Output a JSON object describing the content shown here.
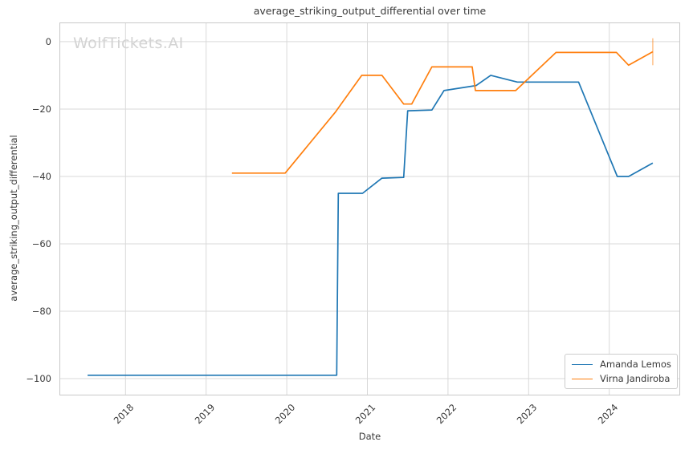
{
  "watermark": "WolfTickets.AI",
  "colors": {
    "grid": "#d9d9d9",
    "spine": "#c8c8c8",
    "watermark": "#d3d3d3",
    "text": "#3a3a3a",
    "series_blue": "#1f77b4",
    "series_orange": "#ff7f0e"
  },
  "chart_data": {
    "type": "line",
    "title": "average_striking_output_differential over time",
    "xlabel": "Date",
    "ylabel": "average_striking_output_differential",
    "grid": true,
    "legend_position": "lower right",
    "xlim": [
      2017.18,
      2024.88
    ],
    "ylim": [
      -105,
      5.7
    ],
    "x_ticks": [
      2018,
      2019,
      2020,
      2021,
      2022,
      2023,
      2024
    ],
    "x_tick_labels": [
      "2018",
      "2019",
      "2020",
      "2021",
      "2022",
      "2023",
      "2024"
    ],
    "y_ticks": [
      0,
      -20,
      -40,
      -60,
      -80,
      -100
    ],
    "y_tick_labels": [
      "0",
      "−20",
      "−40",
      "−60",
      "−80",
      "−100"
    ],
    "series": [
      {
        "name": "Amanda Lemos",
        "color": "#1f77b4",
        "points": [
          [
            2017.53,
            -99
          ],
          [
            2020.62,
            -99
          ],
          [
            2020.64,
            -45
          ],
          [
            2020.94,
            -45
          ],
          [
            2021.18,
            -40.5
          ],
          [
            2021.45,
            -40.3
          ],
          [
            2021.5,
            -20.5
          ],
          [
            2021.8,
            -20.3
          ],
          [
            2021.95,
            -14.5
          ],
          [
            2022.35,
            -13
          ],
          [
            2022.53,
            -10
          ],
          [
            2022.86,
            -12
          ],
          [
            2023.62,
            -12
          ],
          [
            2024.1,
            -40
          ],
          [
            2024.24,
            -40
          ],
          [
            2024.54,
            -36
          ]
        ]
      },
      {
        "name": "Virna Jandiroba",
        "color": "#ff7f0e",
        "points": [
          [
            2019.32,
            -39
          ],
          [
            2019.98,
            -39
          ],
          [
            2020.6,
            -21
          ],
          [
            2020.93,
            -10
          ],
          [
            2021.18,
            -10
          ],
          [
            2021.45,
            -18.5
          ],
          [
            2021.55,
            -18.5
          ],
          [
            2021.8,
            -7.5
          ],
          [
            2022.3,
            -7.5
          ],
          [
            2022.34,
            -14.5
          ],
          [
            2022.84,
            -14.5
          ],
          [
            2023.34,
            -3.2
          ],
          [
            2024.09,
            -3.2
          ],
          [
            2024.24,
            -7
          ],
          [
            2024.54,
            -3
          ]
        ],
        "end_marker": {
          "x": 2024.54,
          "y_from": 1,
          "y_to": -7,
          "opacity": 0.45
        }
      }
    ]
  }
}
